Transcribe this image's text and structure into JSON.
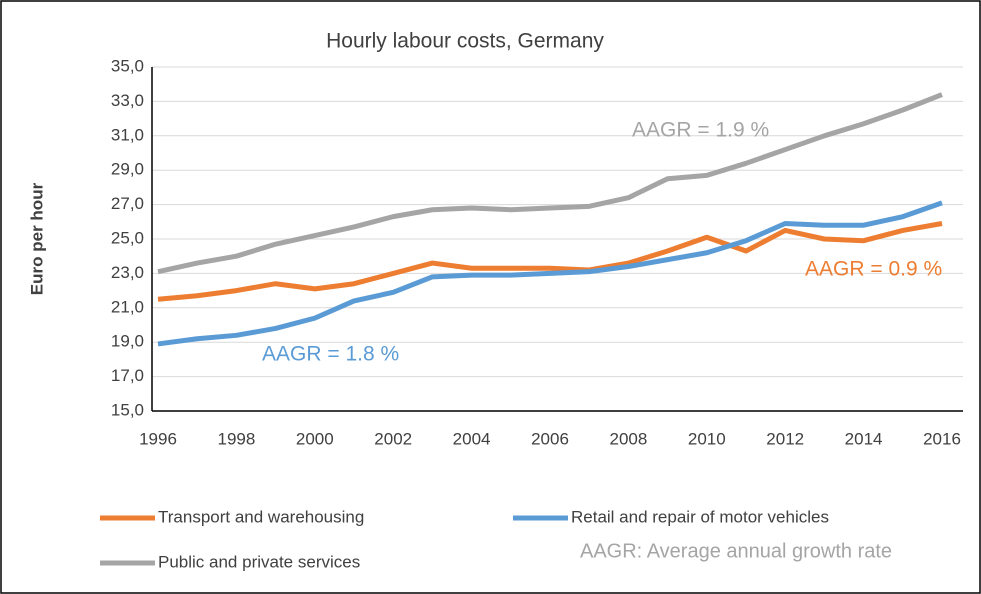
{
  "chart_data": {
    "type": "line",
    "title": "Hourly labour costs, Germany",
    "y_label": "Euro per hour",
    "categories": [
      "1996",
      null,
      "1998",
      null,
      "2000",
      null,
      "2002",
      null,
      "2004",
      null,
      "2006",
      null,
      "2008",
      null,
      "2010",
      null,
      "2012",
      null,
      "2014",
      null,
      "2016"
    ],
    "series": [
      {
        "name": "Transport and warehousing",
        "color": "#ed7d31",
        "values": [
          21.5,
          21.7,
          22.0,
          22.4,
          22.1,
          22.4,
          23.0,
          23.6,
          23.3,
          23.3,
          23.3,
          23.2,
          23.6,
          24.3,
          25.1,
          24.3,
          25.5,
          25.0,
          24.9,
          25.5,
          25.9
        ]
      },
      {
        "name": "Retail and repair of motor vehicles",
        "color": "#5b9bd5",
        "values": [
          18.9,
          19.2,
          19.4,
          19.8,
          20.4,
          21.4,
          21.9,
          22.8,
          22.9,
          22.9,
          23.0,
          23.1,
          23.4,
          23.8,
          24.2,
          24.9,
          25.9,
          25.8,
          25.8,
          26.3,
          27.1
        ]
      },
      {
        "name": "Public and private services",
        "color": "#a5a5a5",
        "values": [
          23.1,
          23.6,
          24.0,
          24.7,
          25.2,
          25.7,
          26.3,
          26.7,
          26.8,
          26.7,
          26.8,
          26.9,
          27.4,
          28.5,
          28.7,
          29.4,
          30.2,
          31.0,
          31.7,
          32.5,
          33.4
        ]
      }
    ],
    "ylim": [
      15,
      35
    ],
    "yticks": [
      {
        "value": 15,
        "label": "15,0"
      },
      {
        "value": 17,
        "label": "17,0"
      },
      {
        "value": 19,
        "label": "19,0"
      },
      {
        "value": 21,
        "label": "21,0"
      },
      {
        "value": 23,
        "label": "23,0"
      },
      {
        "value": 25,
        "label": "25,0"
      },
      {
        "value": 27,
        "label": "27,0"
      },
      {
        "value": 29,
        "label": "29,0"
      },
      {
        "value": 31,
        "label": "31,0"
      },
      {
        "value": 33,
        "label": "33,0"
      },
      {
        "value": 35,
        "label": "35,0"
      }
    ],
    "grid": true,
    "annotations": [
      {
        "text": "AAGR = 1.9 %",
        "color": "#a5a5a5"
      },
      {
        "text": "AAGR = 0.9 %",
        "color": "#ed7d31"
      },
      {
        "text": "AAGR = 1.8 %",
        "color": "#5b9bd5"
      }
    ],
    "note": "AAGR: Average annual growth rate"
  }
}
